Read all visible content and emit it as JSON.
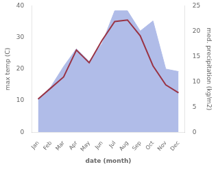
{
  "chart_data": {
    "type": "line",
    "categories": [
      "Jan",
      "Feb",
      "Mar",
      "Apr",
      "May",
      "Jun",
      "Jul",
      "Aug",
      "Sep",
      "Oct",
      "Nov",
      "Dec"
    ],
    "xlabel": "date (month)",
    "ylabel": "max temp (C)",
    "y2label": "med. precipitation (kg/m2)",
    "series": [
      {
        "type": "area",
        "color": "#b0bce8",
        "axis": "y2",
        "values": [
          6.5,
          9.0,
          13.0,
          16.5,
          14.0,
          17.5,
          24.0,
          24.0,
          20.0,
          22.0,
          12.5,
          12.0
        ]
      },
      {
        "type": "line",
        "color": "#993344",
        "values": [
          10.5,
          14.0,
          17.5,
          26.0,
          22.0,
          29.0,
          35.0,
          35.5,
          30.5,
          21.0,
          15.0,
          12.5
        ]
      }
    ],
    "ylim": [
      0,
      40
    ],
    "yticks": [
      0,
      10,
      20,
      30,
      40
    ],
    "y2lim": [
      0,
      25
    ],
    "y2ticks": [
      0,
      5,
      10,
      15,
      20,
      25
    ],
    "grid": false
  }
}
